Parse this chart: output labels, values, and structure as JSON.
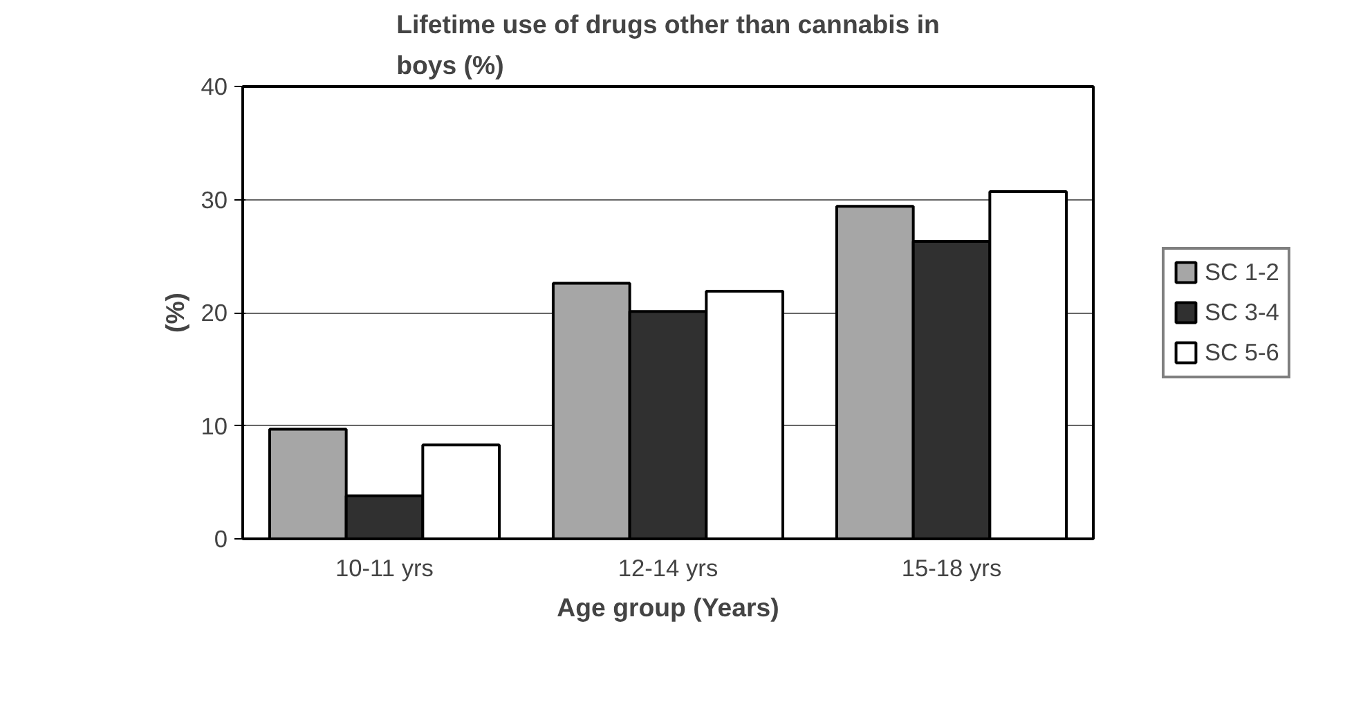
{
  "chart_data": {
    "type": "bar",
    "title": "Lifetime use of drugs other than cannabis in boys (%)",
    "xlabel": "Age group (Years)",
    "ylabel": "(%)",
    "categories": [
      "10-11 yrs",
      "12-14 yrs",
      "15-18 yrs"
    ],
    "series": [
      {
        "name": "SC 1-2",
        "color": "#a6a6a6",
        "values": [
          9.7,
          22.6,
          29.4
        ]
      },
      {
        "name": "SC 3-4",
        "color": "#303030",
        "values": [
          3.8,
          20.1,
          26.3
        ]
      },
      {
        "name": "SC 5-6",
        "color": "#ffffff",
        "values": [
          8.3,
          21.9,
          30.7
        ]
      }
    ],
    "ylim": [
      0,
      40
    ],
    "yticks": [
      0,
      10,
      20,
      30,
      40
    ],
    "grid": "y",
    "legend": "right"
  }
}
